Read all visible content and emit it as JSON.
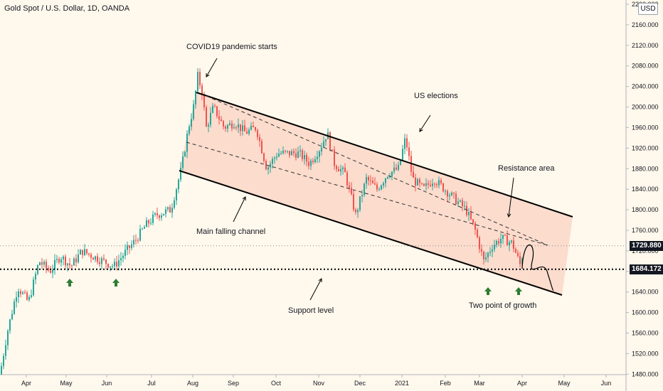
{
  "header": {
    "title": "Gold Spot / U.S. Dollar, 1D, OANDA",
    "currency_button": "USD"
  },
  "annotations": {
    "covid": "COVID19 pandemic starts",
    "elections": "US elections",
    "resistance": "Resistance area",
    "channel": "Main falling channel",
    "support": "Support level",
    "growth": "Two point of growth"
  },
  "price_labels": {
    "current": "1729.880",
    "support": "1684.172"
  },
  "colors": {
    "up": "#26a69a",
    "down": "#ef5350",
    "channel_fill": "#f7c4b4",
    "arrow": "#2e7d32",
    "background": "#fff8ec"
  },
  "chart_data": {
    "type": "candlestick",
    "y_ticks": [
      "2200.000",
      "2160.000",
      "2120.000",
      "2080.000",
      "2040.000",
      "2000.000",
      "1960.000",
      "1920.000",
      "1880.000",
      "1840.000",
      "1800.000",
      "1760.000",
      "1720.000",
      "1680.000",
      "1640.000",
      "1600.000",
      "1560.000",
      "1520.000",
      "1480.000"
    ],
    "x_ticks": [
      "Apr",
      "May",
      "Jun",
      "Jul",
      "Aug",
      "Sep",
      "Oct",
      "Nov",
      "Dec",
      "2021",
      "Feb",
      "Mar",
      "Apr",
      "May",
      "Jun"
    ],
    "ylim": [
      1470,
      2210
    ],
    "support_level": 1684.172,
    "current_price": 1729.88,
    "price_path": [
      [
        0,
        1480
      ],
      [
        10,
        1560
      ],
      [
        25,
        1650
      ],
      [
        40,
        1620
      ],
      [
        55,
        1700
      ],
      [
        70,
        1680
      ],
      [
        85,
        1710
      ],
      [
        100,
        1690
      ],
      [
        115,
        1720
      ],
      [
        130,
        1710
      ],
      [
        145,
        1700
      ],
      [
        160,
        1690
      ],
      [
        175,
        1715
      ],
      [
        190,
        1740
      ],
      [
        205,
        1770
      ],
      [
        220,
        1790
      ],
      [
        240,
        1800
      ],
      [
        255,
        1880
      ],
      [
        265,
        1960
      ],
      [
        272,
        2000
      ],
      [
        278,
        2060
      ],
      [
        284,
        2030
      ],
      [
        290,
        1960
      ],
      [
        300,
        2000
      ],
      [
        315,
        1960
      ],
      [
        330,
        1970
      ],
      [
        345,
        1950
      ],
      [
        360,
        1960
      ],
      [
        375,
        1880
      ],
      [
        390,
        1910
      ],
      [
        405,
        1910
      ],
      [
        420,
        1910
      ],
      [
        435,
        1890
      ],
      [
        450,
        1920
      ],
      [
        460,
        1950
      ],
      [
        470,
        1890
      ],
      [
        485,
        1870
      ],
      [
        500,
        1790
      ],
      [
        515,
        1860
      ],
      [
        530,
        1840
      ],
      [
        545,
        1870
      ],
      [
        560,
        1880
      ],
      [
        570,
        1940
      ],
      [
        580,
        1860
      ],
      [
        595,
        1840
      ],
      [
        610,
        1860
      ],
      [
        625,
        1840
      ],
      [
        640,
        1820
      ],
      [
        655,
        1800
      ],
      [
        668,
        1760
      ],
      [
        680,
        1700
      ],
      [
        692,
        1730
      ],
      [
        705,
        1745
      ],
      [
        720,
        1735
      ],
      [
        732,
        1690
      ],
      [
        736,
        1729.88
      ]
    ],
    "channel": {
      "upper": [
        [
          1700,
          2050
        ],
        [
          1800,
          1878
        ]
      ],
      "lower": [
        [
          1700,
          1887
        ],
        [
          1800,
          1707
        ]
      ]
    },
    "up_arrows": [
      "May",
      "Jun",
      "Mar",
      "Apr"
    ]
  }
}
